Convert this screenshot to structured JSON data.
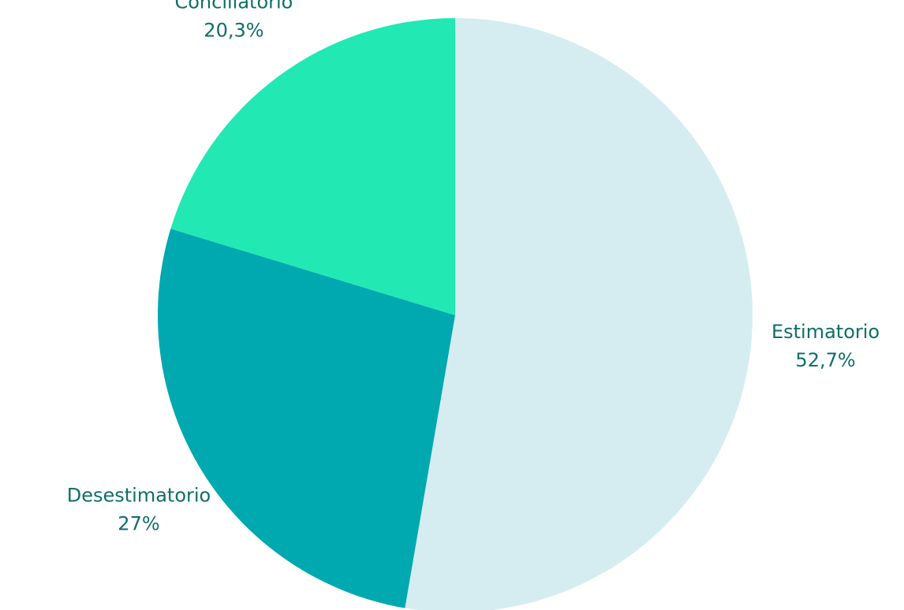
{
  "chart_data": {
    "type": "pie",
    "categories": [
      "Estimatorio",
      "Desestimatorio",
      "Conciliatorio"
    ],
    "values": [
      52.7,
      27,
      20.3
    ],
    "value_labels": [
      "52,7%",
      "27%",
      "20,3%"
    ],
    "colors": [
      "#d5edf0",
      "#00a8b0",
      "#22e8b4"
    ]
  }
}
